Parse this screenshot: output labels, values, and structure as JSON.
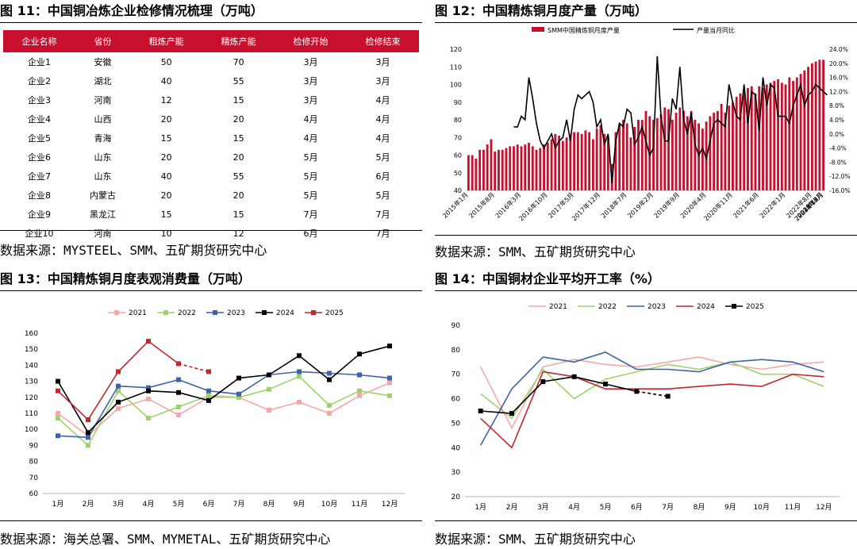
{
  "fig11": {
    "title": "图 11：中国铜冶炼企业检修情况梳理（万吨）",
    "source": "数据来源：MYSTEEL、SMM、五矿期货研究中心",
    "headers": [
      "企业名称",
      "省份",
      "粗炼产能",
      "精炼产能",
      "检修开始",
      "检修结束"
    ],
    "rows": [
      [
        "企业1",
        "安徽",
        "50",
        "70",
        "3月",
        "3月"
      ],
      [
        "企业2",
        "湖北",
        "40",
        "55",
        "3月",
        "3月"
      ],
      [
        "企业3",
        "河南",
        "12",
        "15",
        "3月",
        "4月"
      ],
      [
        "企业4",
        "山西",
        "20",
        "20",
        "4月",
        "4月"
      ],
      [
        "企业5",
        "青海",
        "15",
        "15",
        "4月",
        "4月"
      ],
      [
        "企业6",
        "山东",
        "20",
        "20",
        "5月",
        "5月"
      ],
      [
        "企业7",
        "山东",
        "40",
        "55",
        "5月",
        "6月"
      ],
      [
        "企业8",
        "内蒙古",
        "20",
        "20",
        "5月",
        "5月"
      ],
      [
        "企业9",
        "黑龙江",
        "15",
        "15",
        "7月",
        "7月"
      ],
      [
        "企业10",
        "河南",
        "10",
        "12",
        "6月",
        "7月"
      ]
    ],
    "header_color": "#c8102e"
  },
  "fig12": {
    "title": "图 12：中国精炼铜月度产量（万吨）",
    "source": "数据来源：SMM、五矿期货研究中心",
    "chart_data": {
      "type": "bar",
      "series": [
        {
          "name": "SMM中国精炼铜月度产量",
          "color": "#c8102e",
          "axis": "left",
          "values": [
            60,
            60,
            58,
            63,
            63,
            66,
            69,
            62,
            63,
            63,
            64,
            65,
            65,
            66,
            65,
            66,
            67,
            65,
            63,
            64,
            66,
            67,
            69,
            72,
            71,
            68,
            70,
            72,
            73,
            73,
            72,
            74,
            73,
            69,
            75,
            77,
            72,
            70,
            55,
            73,
            78,
            80,
            78,
            70,
            76,
            80,
            80,
            85,
            82,
            80,
            81,
            83,
            87,
            86,
            80,
            84,
            87,
            85,
            82,
            85,
            80,
            78,
            75,
            79,
            82,
            84,
            85,
            89,
            84,
            88,
            90,
            93,
            95,
            96,
            98,
            99,
            95,
            99,
            98,
            100,
            101,
            102,
            103,
            101,
            100,
            104,
            102,
            104,
            106,
            108,
            110,
            112,
            113,
            114,
            114
          ]
        },
        {
          "name": "产量当月同比",
          "color": "#000000",
          "axis": "right",
          "values": [
            null,
            null,
            null,
            null,
            null,
            null,
            null,
            null,
            null,
            null,
            null,
            null,
            2,
            2,
            5,
            4,
            16,
            10,
            3,
            -2,
            -4,
            -2,
            0,
            -4,
            -2,
            -1,
            4,
            -2,
            7,
            11,
            10,
            11,
            12,
            9,
            2,
            4,
            -3,
            0,
            -14,
            -2,
            3,
            2,
            7,
            6,
            -3,
            -1,
            2,
            -2,
            -6,
            -4,
            22,
            5,
            -2,
            -2,
            10,
            7,
            19,
            4,
            0,
            6,
            -3,
            -6,
            -4,
            -7,
            -2,
            3,
            4,
            3,
            2,
            14,
            9,
            5,
            4,
            14,
            3,
            12,
            11,
            1,
            16,
            8,
            14,
            13,
            5,
            5,
            5,
            3,
            8,
            11,
            14,
            8,
            11,
            12,
            14,
            13,
            12,
            11
          ]
        }
      ],
      "x_tick_labels": [
        "2015年1月",
        "2015年8月",
        "2016年3月",
        "2016年10月",
        "2017年5月",
        "2017年12月",
        "2018年7月",
        "2019年2月",
        "2019年9月",
        "2020年4月",
        "2020年11月",
        "2021年6月",
        "2022年1月",
        "2022年8月",
        "2023年3月",
        "2023年10月",
        "2024年5月",
        "2024年12月",
        "2025年7月"
      ],
      "ylim": [
        40,
        120
      ],
      "y_ticks": [
        40,
        50,
        60,
        70,
        80,
        90,
        100,
        110,
        120
      ],
      "y2lim": [
        -16,
        24
      ],
      "y2_tick_labels": [
        "-16.0%",
        "-12.0%",
        "-8.0%",
        "-4.0%",
        "0.0%",
        "4.0%",
        "8.0%",
        "12.0%",
        "16.0%",
        "20.0%",
        "24.0%"
      ],
      "legend_position": "top"
    }
  },
  "fig13": {
    "title": "图 13：中国精炼铜月度表观消费量（万吨）",
    "source": "数据来源：海关总署、SMM、MYMETAL、五矿期货研究中心",
    "chart_data": {
      "type": "line",
      "categories": [
        "1月",
        "2月",
        "3月",
        "4月",
        "5月",
        "6月",
        "7月",
        "8月",
        "9月",
        "10月",
        "11月",
        "12月"
      ],
      "ylim": [
        60,
        160
      ],
      "y_ticks": [
        60,
        70,
        80,
        90,
        100,
        110,
        120,
        130,
        140,
        150,
        160
      ],
      "legend_position": "top",
      "series": [
        {
          "name": "2021",
          "color": "#f4a9a8",
          "values": [
            110,
            96,
            113,
            119,
            109,
            120,
            120,
            112,
            117,
            110,
            121,
            129
          ]
        },
        {
          "name": "2022",
          "color": "#9fd26b",
          "values": [
            107,
            90,
            124,
            107,
            114,
            121,
            120,
            125,
            133,
            115,
            124,
            121
          ]
        },
        {
          "name": "2023",
          "color": "#3d64a8",
          "values": [
            96,
            95,
            127,
            126,
            131,
            124,
            122,
            134,
            136,
            135,
            134,
            132
          ]
        },
        {
          "name": "2024",
          "color": "#000000",
          "values": [
            130,
            98,
            117,
            124,
            123,
            118,
            132,
            134,
            146,
            131,
            147,
            152
          ]
        },
        {
          "name": "2025",
          "color": "#c0282e",
          "values": [
            124,
            106,
            136,
            155,
            141,
            136,
            null,
            null,
            null,
            null,
            null,
            null
          ],
          "dashed_from_index": 4
        }
      ]
    }
  },
  "fig14": {
    "title": "图 14：中国铜材企业平均开工率（%）",
    "source": "数据来源：SMM、五矿期货研究中心",
    "chart_data": {
      "type": "line",
      "categories": [
        "1月",
        "2月",
        "3月",
        "4月",
        "5月",
        "6月",
        "7月",
        "8月",
        "9月",
        "10月",
        "11月",
        "12月"
      ],
      "ylim": [
        20,
        90
      ],
      "y_ticks": [
        20,
        30,
        40,
        50,
        60,
        70,
        80,
        90
      ],
      "legend_position": "top",
      "series": [
        {
          "name": "2021",
          "color": "#f4a9a8",
          "values": [
            73,
            48,
            73,
            76,
            74,
            73,
            75,
            77,
            74,
            72,
            74,
            75
          ]
        },
        {
          "name": "2022",
          "color": "#9fd26b",
          "values": [
            62,
            52,
            72,
            60,
            68,
            71,
            74,
            72,
            75,
            70,
            70,
            65
          ]
        },
        {
          "name": "2023",
          "color": "#3d64a8",
          "values": [
            41,
            64,
            77,
            75,
            79,
            72,
            72,
            71,
            75,
            76,
            75,
            71
          ]
        },
        {
          "name": "2024",
          "color": "#c0282e",
          "values": [
            52,
            40,
            71,
            69,
            64,
            64,
            64,
            65,
            66,
            65,
            70,
            69
          ]
        },
        {
          "name": "2025",
          "color": "#000000",
          "values": [
            55,
            54,
            67,
            69,
            66,
            63,
            61,
            null,
            null,
            null,
            null,
            null
          ],
          "dashed_from_index": 5,
          "markers": true
        }
      ]
    }
  }
}
